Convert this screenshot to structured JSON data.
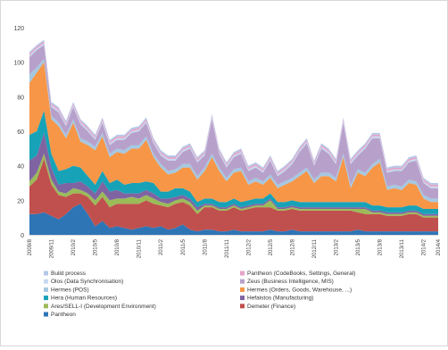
{
  "chart_data": {
    "type": "area",
    "stacked": true,
    "ylim": [
      0,
      120
    ],
    "yticks": [
      0,
      20,
      40,
      60,
      80,
      100,
      120
    ],
    "grid": false,
    "legend_position": "bottom",
    "x": [
      "2009/8",
      "2009/9",
      "2009/10",
      "2009/11",
      "2009/12",
      "2010/1",
      "2010/2",
      "2010/3",
      "2010/4",
      "2010/5",
      "2010/6",
      "2010/7",
      "2010/8",
      "2010/9",
      "2010/10",
      "2010/11",
      "2010/12",
      "2011/1",
      "2011/2",
      "2011/3",
      "2011/4",
      "2011/5",
      "2011/6",
      "2011/7",
      "2011/8",
      "2011/9",
      "2011/10",
      "2011/11",
      "2011/12",
      "2012/1",
      "2012/2",
      "2012/3",
      "2012/4",
      "2012/5",
      "2012/6",
      "2012/7",
      "2012/8",
      "2012/9",
      "2012/10",
      "2012/11",
      "2012/12",
      "2013/1",
      "2013/2",
      "2013/3",
      "2013/4",
      "2013/5",
      "2013/6",
      "2013/7",
      "2013/8",
      "2013/9",
      "2013/10",
      "2013/11",
      "2013/12",
      "2014/1",
      "2014/2",
      "2014/3",
      "2014/4"
    ],
    "xticks_shown": [
      "2009/8",
      "2009/11",
      "2010/2",
      "2010/5",
      "2010/8",
      "2010/11",
      "2011/2",
      "2011/5",
      "2011/8",
      "2011/11",
      "2012/2",
      "2012/5",
      "2012/8",
      "2012/11",
      "2013/2",
      "2013/5",
      "2013/8",
      "2013/11",
      "2014/2",
      "2014/4"
    ],
    "series": [
      {
        "name": "Pantheon",
        "color": "#2e75b6",
        "values": [
          12,
          12,
          13,
          11,
          9,
          12,
          16,
          18,
          12,
          5,
          8,
          4,
          5,
          4,
          3,
          4,
          5,
          4,
          5,
          3,
          4,
          6,
          3,
          2,
          3,
          3,
          2,
          2,
          3,
          2,
          2,
          2,
          2,
          3,
          2,
          2,
          3,
          2,
          2,
          2,
          2,
          2,
          2,
          2,
          2,
          3,
          2,
          2,
          2,
          2,
          2,
          2,
          2,
          2,
          2,
          2,
          2
        ]
      },
      {
        "name": "Demeter (Finance)",
        "color": "#c0504d",
        "values": [
          16,
          20,
          31,
          18,
          14,
          10,
          8,
          6,
          10,
          12,
          14,
          12,
          13,
          14,
          15,
          14,
          15,
          14,
          12,
          13,
          14,
          13,
          14,
          10,
          13,
          13,
          12,
          12,
          13,
          12,
          13,
          14,
          14,
          13,
          12,
          12,
          12,
          12,
          12,
          12,
          12,
          12,
          12,
          12,
          12,
          10,
          10,
          10,
          10,
          9,
          9,
          9,
          10,
          10,
          8,
          8,
          8
        ]
      },
      {
        "name": "Ares/SELL-I (Development Environment)",
        "color": "#9bbb59",
        "values": [
          3,
          4,
          3,
          3,
          2,
          2,
          3,
          2,
          2,
          3,
          3,
          4,
          3,
          3,
          4,
          3,
          3,
          3,
          2,
          2,
          2,
          2,
          2,
          2,
          1,
          1,
          1,
          1,
          1,
          1,
          1,
          1,
          1,
          4,
          1,
          1,
          1,
          1,
          1,
          1,
          1,
          1,
          1,
          1,
          1,
          2,
          3,
          1,
          1,
          1,
          1,
          1,
          1,
          1,
          1,
          1,
          1
        ]
      },
      {
        "name": "Hefaistos (Manufacturing)",
        "color": "#8064a2",
        "values": [
          12,
          10,
          12,
          7,
          4,
          6,
          3,
          5,
          4,
          4,
          6,
          5,
          5,
          3,
          2,
          3,
          3,
          3,
          2,
          3,
          2,
          2,
          2,
          2,
          1,
          1,
          1,
          1,
          1,
          1,
          1,
          1,
          1,
          1,
          1,
          1,
          1,
          1,
          1,
          1,
          1,
          1,
          1,
          1,
          1,
          1,
          1,
          1,
          1,
          1,
          1,
          1,
          1,
          1,
          1,
          1,
          1
        ]
      },
      {
        "name": "Hera (Human Resources)",
        "color": "#17a2b8",
        "values": [
          15,
          14,
          13,
          8,
          8,
          8,
          10,
          8,
          6,
          5,
          6,
          5,
          6,
          5,
          6,
          6,
          5,
          6,
          4,
          4,
          5,
          4,
          4,
          3,
          3,
          3,
          3,
          3,
          3,
          3,
          3,
          3,
          3,
          3,
          3,
          3,
          3,
          3,
          3,
          3,
          3,
          3,
          3,
          3,
          3,
          3,
          3,
          3,
          3,
          3,
          3,
          3,
          3,
          3,
          3,
          3,
          3
        ]
      },
      {
        "name": "Hermes (Orders, Goods, Warehouse, ...)",
        "color": "#f79646",
        "values": [
          30,
          34,
          28,
          20,
          26,
          18,
          25,
          15,
          18,
          20,
          20,
          15,
          16,
          18,
          20,
          20,
          24,
          15,
          14,
          10,
          9,
          12,
          14,
          13,
          16,
          24,
          18,
          12,
          15,
          18,
          9,
          10,
          8,
          9,
          8,
          10,
          11,
          15,
          18,
          11,
          15,
          15,
          12,
          26,
          8,
          17,
          15,
          22,
          25,
          10,
          11,
          10,
          13,
          12,
          6,
          4,
          4
        ]
      },
      {
        "name": "Hermes (POS)",
        "color": "#a5c8e1",
        "values": [
          5,
          3,
          2,
          2,
          2,
          2,
          2,
          2,
          2,
          2,
          2,
          2,
          2,
          2,
          2,
          2,
          2,
          2,
          2,
          2,
          2,
          2,
          2,
          2,
          2,
          2,
          2,
          2,
          2,
          2,
          2,
          2,
          2,
          2,
          2,
          2,
          2,
          2,
          2,
          2,
          2,
          2,
          2,
          2,
          2,
          2,
          2,
          2,
          2,
          2,
          2,
          2,
          2,
          2,
          2,
          2,
          2
        ]
      },
      {
        "name": "Zeus (Business Intelligence, MIS)",
        "color": "#b7a1cb",
        "values": [
          10,
          10,
          8,
          5,
          6,
          5,
          7,
          8,
          6,
          4,
          6,
          5,
          5,
          6,
          7,
          8,
          8,
          6,
          5,
          6,
          5,
          7,
          9,
          8,
          7,
          20,
          8,
          6,
          7,
          8,
          6,
          6,
          5,
          8,
          5,
          6,
          8,
          12,
          14,
          8,
          14,
          11,
          8,
          18,
          12,
          8,
          14,
          15,
          12,
          8,
          8,
          9,
          10,
          12,
          7,
          6,
          6
        ]
      },
      {
        "name": "Olos (Data Synchronisation)",
        "color": "#c6d9f0",
        "values": [
          1,
          1,
          1,
          1,
          1,
          1,
          1,
          1,
          1,
          1,
          1,
          1,
          1,
          1,
          1,
          1,
          1,
          1,
          1,
          1,
          1,
          1,
          1,
          1,
          1,
          1,
          1,
          1,
          1,
          1,
          1,
          1,
          1,
          1,
          1,
          1,
          1,
          1,
          1,
          1,
          1,
          1,
          1,
          1,
          1,
          1,
          1,
          1,
          1,
          1,
          1,
          1,
          1,
          1,
          1,
          1,
          1
        ]
      },
      {
        "name": "Pantheon (CodeBooks, Settings, General)",
        "color": "#e6a3c8",
        "values": [
          1,
          1,
          1,
          1,
          1,
          1,
          1,
          1,
          1,
          1,
          1,
          1,
          1,
          1,
          1,
          1,
          1,
          1,
          1,
          1,
          1,
          1,
          1,
          1,
          1,
          1,
          1,
          1,
          1,
          1,
          1,
          1,
          1,
          1,
          1,
          1,
          1,
          1,
          1,
          1,
          1,
          1,
          1,
          1,
          1,
          1,
          1,
          1,
          1,
          1,
          1,
          1,
          1,
          1,
          1,
          1,
          1
        ]
      },
      {
        "name": "Build process",
        "color": "#b4c7e7",
        "values": [
          1,
          1,
          1,
          1,
          1,
          1,
          1,
          1,
          1,
          1,
          1,
          1,
          1,
          1,
          1,
          1,
          1,
          1,
          1,
          1,
          1,
          1,
          1,
          1,
          1,
          1,
          1,
          1,
          1,
          1,
          1,
          1,
          1,
          1,
          1,
          1,
          1,
          1,
          1,
          1,
          1,
          1,
          1,
          1,
          1,
          1,
          1,
          1,
          1,
          1,
          1,
          1,
          1,
          1,
          1,
          1,
          1
        ]
      }
    ],
    "legend": [
      {
        "name": "Build process",
        "color": "#b4c7e7"
      },
      {
        "name": "Pantheon (CodeBooks, Settings, General)",
        "color": "#e6a3c8"
      },
      {
        "name": "Olos (Data Synchronisation)",
        "color": "#c6d9f0"
      },
      {
        "name": "Zeus (Business Intelligence, MIS)",
        "color": "#b7a1cb"
      },
      {
        "name": "Hermes (POS)",
        "color": "#a5c8e1"
      },
      {
        "name": "Hermes (Orders, Goods, Warehouse, ...)",
        "color": "#f79646"
      },
      {
        "name": "Hera (Human Resources)",
        "color": "#17a2b8"
      },
      {
        "name": "Hefaistos (Manufacturing)",
        "color": "#8064a2"
      },
      {
        "name": "Ares/SELL-I (Development Environment)",
        "color": "#9bbb59"
      },
      {
        "name": "Demeter (Finance)",
        "color": "#c0504d"
      },
      {
        "name": "Pantheon",
        "color": "#2e75b6"
      }
    ]
  }
}
